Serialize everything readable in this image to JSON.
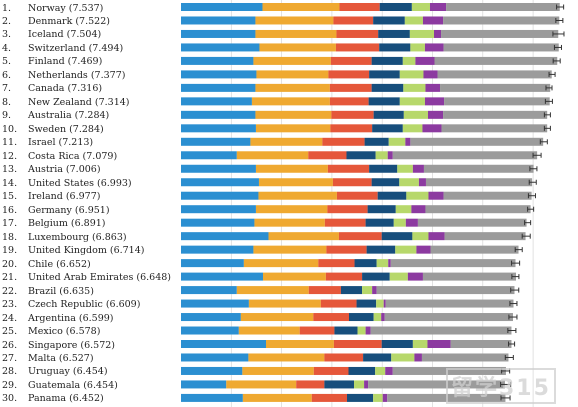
{
  "chart_data": {
    "type": "bar",
    "title": "",
    "xlabel": "",
    "ylabel": "",
    "xlim": [
      0,
      8
    ],
    "grid": true,
    "categories": [
      {
        "rank": "1.",
        "label": "Norway (7.537)",
        "total": 7.537,
        "ci": 0.07
      },
      {
        "rank": "2.",
        "label": "Denmark (7.522)",
        "total": 7.522,
        "ci": 0.07
      },
      {
        "rank": "3.",
        "label": "Iceland (7.504)",
        "total": 7.504,
        "ci": 0.11
      },
      {
        "rank": "4.",
        "label": "Switzerland (7.494)",
        "total": 7.494,
        "ci": 0.07
      },
      {
        "rank": "5.",
        "label": "Finland (7.469)",
        "total": 7.469,
        "ci": 0.07
      },
      {
        "rank": "6.",
        "label": "Netherlands (7.377)",
        "total": 7.377,
        "ci": 0.06
      },
      {
        "rank": "7.",
        "label": "Canada (7.316)",
        "total": 7.316,
        "ci": 0.06
      },
      {
        "rank": "8.",
        "label": "New Zealand (7.314)",
        "total": 7.314,
        "ci": 0.07
      },
      {
        "rank": "9.",
        "label": "Australia (7.284)",
        "total": 7.284,
        "ci": 0.06
      },
      {
        "rank": "10.",
        "label": "Sweden (7.284)",
        "total": 7.284,
        "ci": 0.06
      },
      {
        "rank": "11.",
        "label": "Israel (7.213)",
        "total": 7.213,
        "ci": 0.07
      },
      {
        "rank": "12.",
        "label": "Costa Rica (7.079)",
        "total": 7.079,
        "ci": 0.08
      },
      {
        "rank": "13.",
        "label": "Austria (7.006)",
        "total": 7.006,
        "ci": 0.07
      },
      {
        "rank": "14.",
        "label": "United States (6.993)",
        "total": 6.993,
        "ci": 0.07
      },
      {
        "rank": "15.",
        "label": "Ireland (6.977)",
        "total": 6.977,
        "ci": 0.07
      },
      {
        "rank": "16.",
        "label": "Germany (6.951)",
        "total": 6.951,
        "ci": 0.06
      },
      {
        "rank": "17.",
        "label": "Belgium (6.891)",
        "total": 6.891,
        "ci": 0.06
      },
      {
        "rank": "18.",
        "label": "Luxembourg (6.863)",
        "total": 6.863,
        "ci": 0.08
      },
      {
        "rank": "19.",
        "label": "United Kingdom (6.714)",
        "total": 6.714,
        "ci": 0.07
      },
      {
        "rank": "20.",
        "label": "Chile (6.652)",
        "total": 6.652,
        "ci": 0.08
      },
      {
        "rank": "21.",
        "label": "United Arab Emirates (6.648)",
        "total": 6.648,
        "ci": 0.07
      },
      {
        "rank": "22.",
        "label": "Brazil (6.635)",
        "total": 6.635,
        "ci": 0.08
      },
      {
        "rank": "23.",
        "label": "Czech Republic (6.609)",
        "total": 6.609,
        "ci": 0.07
      },
      {
        "rank": "24.",
        "label": "Argentina (6.599)",
        "total": 6.599,
        "ci": 0.08
      },
      {
        "rank": "25.",
        "label": "Mexico (6.578)",
        "total": 6.578,
        "ci": 0.08
      },
      {
        "rank": "26.",
        "label": "Singapore (6.572)",
        "total": 6.572,
        "ci": 0.06
      },
      {
        "rank": "27.",
        "label": "Malta (6.527)",
        "total": 6.527,
        "ci": 0.08
      },
      {
        "rank": "28.",
        "label": "Uruguay (6.454)",
        "total": 6.454,
        "ci": 0.08
      },
      {
        "rank": "29.",
        "label": "Guatemala (6.454)",
        "total": 6.454,
        "ci": 0.1
      },
      {
        "rank": "30.",
        "label": "Panama (6.452)",
        "total": 6.452,
        "ci": 0.09
      }
    ],
    "series": [
      {
        "color": "#2b8fd1",
        "values": [
          1.62,
          1.48,
          1.48,
          1.56,
          1.44,
          1.5,
          1.48,
          1.41,
          1.48,
          1.49,
          1.38,
          1.11,
          1.49,
          1.55,
          1.54,
          1.49,
          1.46,
          1.74,
          1.44,
          1.25,
          1.63,
          1.11,
          1.35,
          1.19,
          1.15,
          1.69,
          1.34,
          1.22,
          0.9,
          1.23
        ]
      },
      {
        "color": "#efa931",
        "values": [
          1.53,
          1.55,
          1.61,
          1.52,
          1.54,
          1.43,
          1.48,
          1.55,
          1.51,
          1.48,
          1.43,
          1.42,
          1.43,
          1.47,
          1.56,
          1.42,
          1.4,
          1.4,
          1.45,
          1.48,
          1.25,
          1.43,
          1.43,
          1.44,
          1.21,
          1.35,
          1.51,
          1.42,
          1.39,
          1.37
        ]
      },
      {
        "color": "#e5573a",
        "values": [
          0.8,
          0.79,
          0.83,
          0.86,
          0.81,
          0.81,
          0.83,
          0.77,
          0.84,
          0.83,
          0.84,
          0.76,
          0.82,
          0.77,
          0.81,
          0.8,
          0.81,
          0.85,
          0.8,
          0.72,
          0.72,
          0.64,
          0.71,
          0.71,
          0.69,
          0.95,
          0.77,
          0.69,
          0.56,
          0.7
        ]
      },
      {
        "color": "#174e7c",
        "values": [
          0.64,
          0.63,
          0.63,
          0.62,
          0.62,
          0.61,
          0.63,
          0.62,
          0.6,
          0.61,
          0.48,
          0.58,
          0.56,
          0.55,
          0.57,
          0.56,
          0.56,
          0.61,
          0.57,
          0.44,
          0.55,
          0.42,
          0.39,
          0.49,
          0.46,
          0.62,
          0.56,
          0.53,
          0.59,
          0.52
        ]
      },
      {
        "color": "#b7d86b",
        "values": [
          0.36,
          0.36,
          0.48,
          0.29,
          0.25,
          0.47,
          0.44,
          0.5,
          0.48,
          0.39,
          0.33,
          0.24,
          0.31,
          0.39,
          0.44,
          0.31,
          0.24,
          0.32,
          0.42,
          0.23,
          0.36,
          0.2,
          0.15,
          0.15,
          0.16,
          0.29,
          0.46,
          0.2,
          0.2,
          0.19
        ]
      },
      {
        "color": "#8c3aa0",
        "values": [
          0.32,
          0.4,
          0.14,
          0.37,
          0.38,
          0.28,
          0.29,
          0.38,
          0.3,
          0.38,
          0.1,
          0.1,
          0.22,
          0.14,
          0.3,
          0.28,
          0.24,
          0.32,
          0.28,
          0.05,
          0.3,
          0.09,
          0.04,
          0.07,
          0.1,
          0.46,
          0.15,
          0.15,
          0.08,
          0.09
        ]
      },
      {
        "color": "#9b9b9b",
        "values": [
          2.26,
          2.31,
          2.33,
          2.29,
          2.44,
          2.27,
          2.19,
          2.1,
          2.07,
          2.1,
          2.64,
          2.87,
          2.18,
          2.11,
          1.75,
          2.09,
          2.16,
          1.61,
          1.75,
          2.48,
          1.85,
          2.74,
          2.54,
          2.55,
          2.8,
          1.21,
          1.72,
          2.25,
          2.72,
          2.35
        ]
      }
    ]
  },
  "watermark": "留学315"
}
